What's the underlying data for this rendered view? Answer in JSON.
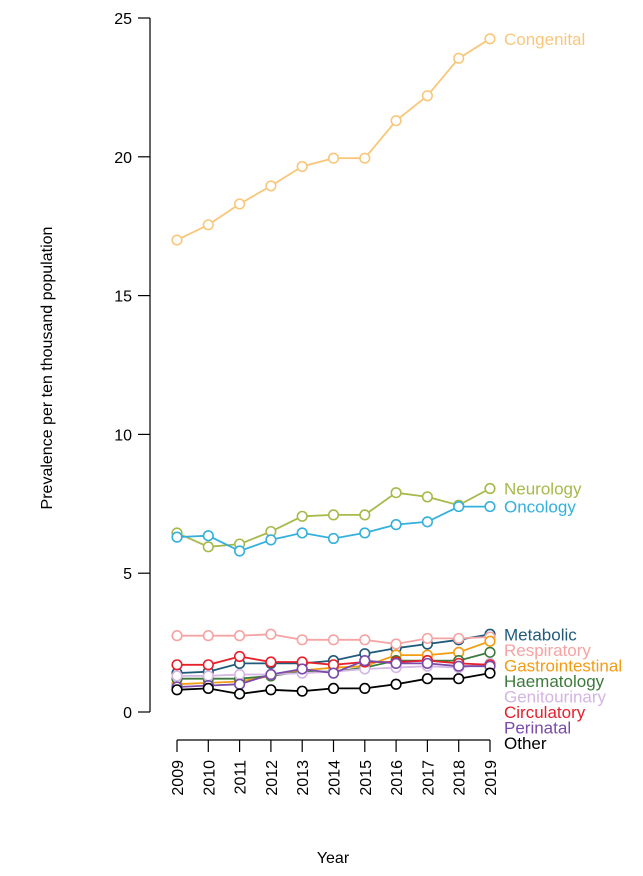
{
  "chart_data": {
    "type": "line",
    "title": "",
    "xlabel": "Year",
    "ylabel": "Prevalence per ten thousand population",
    "x": [
      2009,
      2010,
      2011,
      2012,
      2013,
      2014,
      2015,
      2016,
      2017,
      2018,
      2019
    ],
    "ylim": [
      0,
      25
    ],
    "yticks": [
      0,
      5,
      10,
      15,
      20,
      25
    ],
    "grid": false,
    "legend": "end-of-line labels at right",
    "series": [
      {
        "name": "Congenital",
        "color": "#F9C77C",
        "values": [
          17.0,
          17.55,
          18.3,
          18.95,
          19.65,
          19.95,
          19.95,
          21.3,
          22.2,
          23.55,
          24.25
        ]
      },
      {
        "name": "Neurology",
        "color": "#A8B94B",
        "values": [
          6.45,
          5.95,
          6.05,
          6.5,
          7.05,
          7.1,
          7.1,
          7.9,
          7.75,
          7.45,
          8.05
        ]
      },
      {
        "name": "Oncology",
        "color": "#34B0DC",
        "values": [
          6.3,
          6.35,
          5.8,
          6.2,
          6.45,
          6.25,
          6.45,
          6.75,
          6.85,
          7.4,
          7.4
        ]
      },
      {
        "name": "Metabolic",
        "color": "#1F5A7A",
        "values": [
          1.4,
          1.45,
          1.75,
          1.75,
          1.75,
          1.85,
          2.1,
          2.3,
          2.45,
          2.6,
          2.8
        ]
      },
      {
        "name": "Respiratory",
        "color": "#F5A3A3",
        "values": [
          2.75,
          2.75,
          2.75,
          2.8,
          2.6,
          2.6,
          2.6,
          2.45,
          2.65,
          2.65,
          2.7
        ]
      },
      {
        "name": "Gastrointestinal",
        "color": "#F39C12",
        "values": [
          1.0,
          1.05,
          1.1,
          1.3,
          1.5,
          1.6,
          1.65,
          2.05,
          2.05,
          2.15,
          2.55
        ]
      },
      {
        "name": "Haematology",
        "color": "#3C7A3C",
        "values": [
          1.2,
          1.2,
          1.2,
          1.3,
          1.45,
          1.45,
          1.6,
          1.85,
          1.85,
          1.85,
          2.15
        ]
      },
      {
        "name": "Genitourinary",
        "color": "#D4B5E3",
        "values": [
          1.3,
          1.3,
          1.35,
          1.35,
          1.4,
          1.45,
          1.55,
          1.6,
          1.65,
          1.6,
          1.75
        ]
      },
      {
        "name": "Circulatory",
        "color": "#E8202A",
        "values": [
          1.7,
          1.7,
          2.0,
          1.8,
          1.8,
          1.7,
          1.8,
          1.8,
          1.85,
          1.75,
          1.7
        ]
      },
      {
        "name": "Perinatal",
        "color": "#7A4BA8",
        "values": [
          0.9,
          0.95,
          1.0,
          1.35,
          1.55,
          1.4,
          1.85,
          1.75,
          1.75,
          1.65,
          1.65
        ]
      },
      {
        "name": "Other",
        "color": "#000000",
        "values": [
          0.8,
          0.85,
          0.65,
          0.8,
          0.75,
          0.85,
          0.85,
          1.0,
          1.2,
          1.2,
          1.4
        ]
      }
    ]
  }
}
